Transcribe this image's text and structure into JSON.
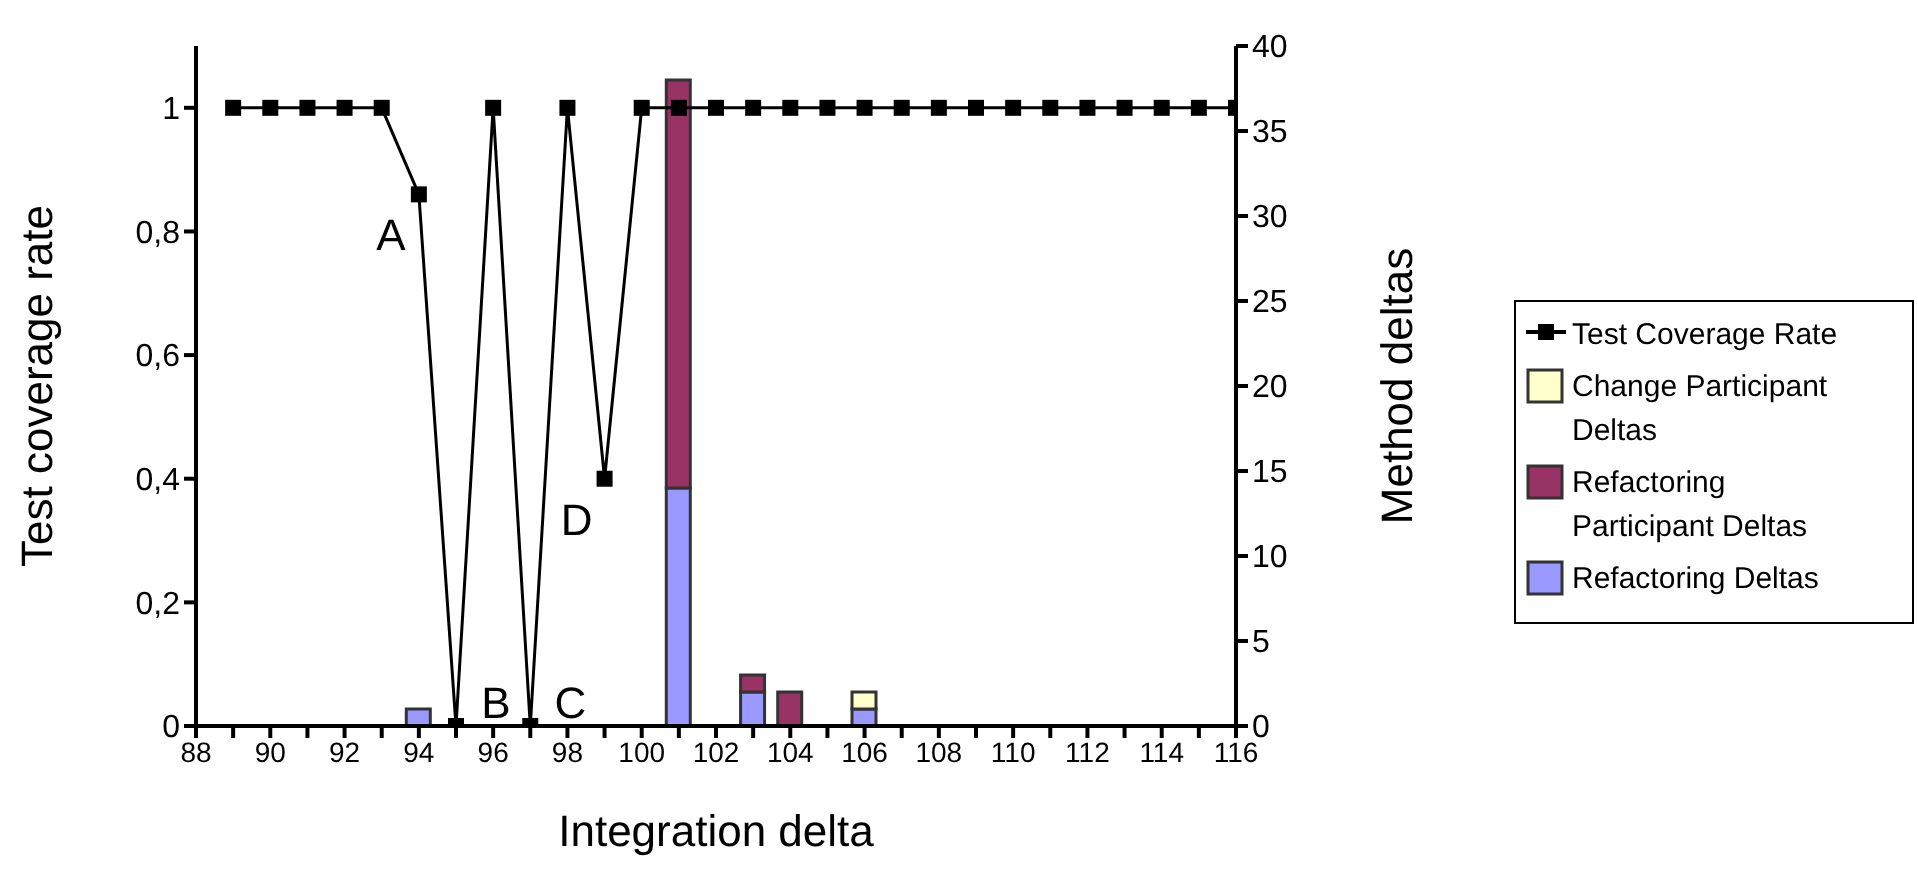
{
  "chart_data": {
    "type": "bar",
    "xlabel": "Integration delta",
    "ylabel": "Test coverage rate",
    "y2label": "Method deltas",
    "x": [
      89,
      90,
      91,
      92,
      93,
      94,
      95,
      96,
      97,
      98,
      99,
      100,
      101,
      102,
      103,
      104,
      105,
      106,
      107,
      108,
      109,
      110,
      111,
      112,
      113,
      114,
      115,
      116
    ],
    "series": [
      {
        "name": "Test Coverage Rate",
        "type": "line",
        "color": "#000000",
        "axis": "y",
        "values": [
          1,
          1,
          1,
          1,
          1,
          0.86,
          0,
          1,
          0,
          1,
          0.4,
          1,
          1,
          1,
          1,
          1,
          1,
          1,
          1,
          1,
          1,
          1,
          1,
          1,
          1,
          1,
          1,
          1
        ]
      },
      {
        "name": "Refactoring Deltas",
        "color": "#9999ff",
        "axis": "y2",
        "values": [
          null,
          null,
          null,
          null,
          null,
          1,
          null,
          null,
          null,
          null,
          null,
          null,
          14,
          null,
          2,
          null,
          null,
          1,
          null,
          null,
          null,
          null,
          null,
          null,
          null,
          null,
          null,
          null
        ]
      },
      {
        "name": "Refactoring Participant Deltas",
        "color": "#993366",
        "axis": "y2",
        "values": [
          null,
          null,
          null,
          null,
          null,
          null,
          null,
          null,
          null,
          null,
          null,
          null,
          24,
          null,
          1,
          2,
          null,
          null,
          null,
          null,
          null,
          null,
          null,
          null,
          null,
          null,
          null,
          null
        ]
      },
      {
        "name": "Change Participant Deltas",
        "color": "#ffffcc",
        "axis": "y2",
        "values": [
          null,
          null,
          null,
          null,
          null,
          null,
          null,
          null,
          null,
          null,
          null,
          null,
          null,
          null,
          null,
          null,
          null,
          1,
          null,
          null,
          null,
          null,
          null,
          null,
          null,
          null,
          null,
          null
        ]
      }
    ],
    "stacked": true,
    "marker": "square",
    "legend": "right",
    "xlim": [
      88,
      116
    ],
    "xticks": [
      88,
      {
        "value": 89,
        "label": null
      },
      90,
      {
        "value": 91,
        "label": null
      },
      92,
      {
        "value": 93,
        "label": null
      },
      94,
      {
        "value": 95,
        "label": null
      },
      96,
      {
        "value": 97,
        "label": null
      },
      98,
      {
        "value": 99,
        "label": null
      },
      100,
      {
        "value": 101,
        "label": null
      },
      102,
      {
        "value": 103,
        "label": null
      },
      104,
      {
        "value": 105,
        "label": null
      },
      106,
      {
        "value": 107,
        "label": null
      },
      108,
      {
        "value": 109,
        "label": null
      },
      110,
      {
        "value": 111,
        "label": null
      },
      112,
      {
        "value": 113,
        "label": null
      },
      114,
      {
        "value": 115,
        "label": null
      },
      116
    ],
    "ylim": [
      0,
      1.1
    ],
    "yticks": [
      0,
      {
        "value": 0.2,
        "label": "0,2"
      },
      {
        "value": 0.4,
        "label": "0,4"
      },
      {
        "value": 0.6,
        "label": "0,6"
      },
      {
        "value": 0.8,
        "label": "0,8"
      },
      1
    ],
    "y2lim": [
      0,
      40
    ],
    "y2ticks": [
      0,
      5,
      10,
      15,
      20,
      25,
      30,
      35,
      40
    ],
    "annotations": [
      {
        "text": "A",
        "x": 94,
        "y": 0.86
      },
      {
        "text": "B",
        "x": 95,
        "y": 0
      },
      {
        "text": "C",
        "x": 97,
        "y": 0
      },
      {
        "text": "D",
        "x": 99,
        "y": 0.4
      }
    ]
  }
}
